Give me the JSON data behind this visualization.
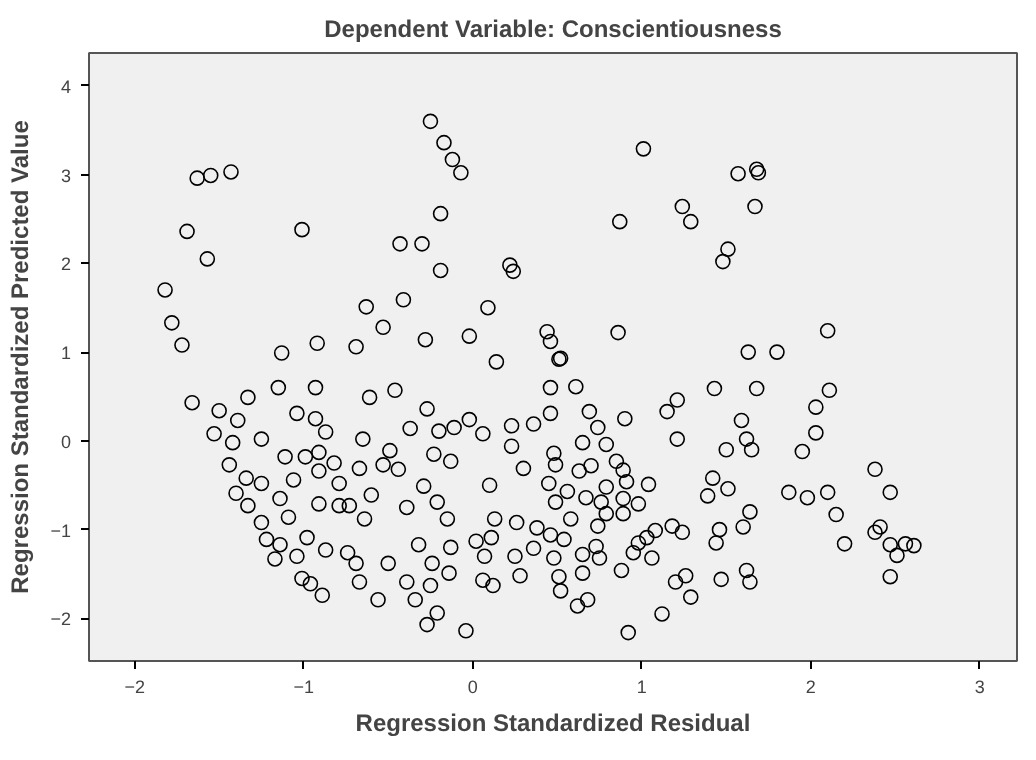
{
  "chart_data": {
    "type": "scatter",
    "title": "Dependent Variable: Conscientiousness",
    "xlabel": "Regression Standardized Residual",
    "ylabel": "Regression Standardized Predicted Value",
    "xlim": [
      -2.27,
      3.22
    ],
    "ylim": [
      -2.48,
      4.37
    ],
    "xticks": [
      -2,
      -1,
      0,
      1,
      2,
      3
    ],
    "yticks": [
      -2,
      -1,
      0,
      1,
      2,
      3,
      4
    ],
    "grid": false,
    "marker": "circle",
    "series": [
      {
        "color": "#000000",
        "x": [
          -0.25,
          -0.17,
          -0.12,
          -0.07,
          -0.19,
          -0.43,
          -0.3,
          -0.19,
          -1.01,
          -1.63,
          -1.55,
          -1.43,
          -1.69,
          -1.57,
          -1.82,
          -1.78,
          -1.72,
          -1.13,
          -0.92,
          -0.69,
          -0.63,
          -0.53,
          -0.41,
          -0.28,
          -0.02,
          0.09,
          0.14,
          0.22,
          0.24,
          0.44,
          0.46,
          0.51,
          1.01,
          1.57,
          1.68,
          1.69,
          0.87,
          1.24,
          1.29,
          1.67,
          1.51,
          1.48,
          0.86,
          1.63,
          1.8,
          2.1,
          0.52,
          -1.66,
          -1.5,
          -1.33,
          -1.15,
          -0.93,
          -0.46,
          -0.61,
          -0.27,
          -1.53,
          -1.39,
          -1.42,
          -1.25,
          -1.04,
          -0.93,
          -0.87,
          -0.65,
          -0.49,
          -0.37,
          -0.2,
          -0.11,
          -0.02,
          0.06,
          0.23,
          0.36,
          0.46,
          -1.44,
          -1.34,
          -1.4,
          -1.25,
          -1.11,
          -0.99,
          -0.91,
          -0.82,
          -0.91,
          -1.06,
          -0.79,
          -0.67,
          -0.53,
          -0.44,
          -0.23,
          -0.13,
          0.1,
          0.23,
          0.3,
          0.45,
          -1.33,
          -1.14,
          -1.25,
          -1.09,
          -0.91,
          -0.79,
          -0.6,
          -0.73,
          -0.64,
          -0.39,
          -0.29,
          -0.21,
          -0.15,
          0.02,
          0.13,
          0.26,
          0.38,
          -1.22,
          -1.14,
          -1.04,
          -0.98,
          -0.87,
          -0.74,
          -0.69,
          -0.5,
          -0.32,
          -0.24,
          -0.14,
          0.07,
          0.11,
          0.25,
          0.36,
          -1.17,
          -1.01,
          -0.89,
          -0.96,
          -0.67,
          -0.56,
          -0.39,
          -0.34,
          -0.25,
          -0.21,
          -0.27,
          -0.04,
          0.06,
          0.12,
          0.28,
          0.51,
          -0.13,
          0.61,
          0.46,
          0.69,
          0.9,
          0.74,
          0.79,
          0.65,
          0.48,
          0.49,
          0.63,
          0.7,
          0.85,
          0.89,
          0.91,
          1.04,
          0.56,
          0.67,
          0.79,
          0.76,
          0.89,
          0.98,
          0.49,
          0.58,
          0.79,
          0.89,
          0.74,
          0.46,
          0.54,
          0.73,
          0.65,
          0.48,
          0.75,
          0.98,
          1.03,
          1.08,
          0.95,
          1.06,
          1.18,
          1.24,
          0.65,
          0.88,
          0.52,
          0.68,
          0.62,
          1.12,
          0.92,
          1.2,
          1.26,
          1.29,
          1.47,
          1.62,
          1.64,
          1.44,
          1.46,
          1.6,
          1.64,
          1.39,
          1.42,
          1.51,
          1.21,
          1.15,
          1.21,
          1.43,
          1.68,
          1.59,
          1.62,
          1.65,
          1.5,
          2.11,
          2.03,
          2.03,
          1.95,
          1.87,
          1.98,
          2.1,
          2.15,
          2.2,
          2.38,
          2.47,
          2.38,
          2.41,
          2.47,
          2.51,
          2.56,
          2.61,
          2.47
        ],
        "values": [
          3.6,
          3.36,
          3.17,
          3.02,
          2.56,
          2.22,
          2.22,
          1.92,
          2.38,
          2.96,
          2.99,
          3.03,
          2.36,
          2.05,
          1.7,
          1.33,
          1.08,
          0.99,
          1.1,
          1.06,
          1.51,
          1.28,
          1.59,
          1.14,
          1.18,
          1.5,
          0.89,
          1.98,
          1.91,
          1.23,
          1.12,
          0.92,
          3.29,
          3.01,
          3.06,
          3.02,
          2.47,
          2.64,
          2.47,
          2.64,
          2.16,
          2.02,
          1.22,
          1.0,
          1.0,
          1.24,
          0.93,
          0.43,
          0.34,
          0.49,
          0.6,
          0.6,
          0.57,
          0.49,
          0.36,
          0.08,
          0.23,
          -0.02,
          0.02,
          0.31,
          0.25,
          0.1,
          0.02,
          -0.11,
          0.14,
          0.11,
          0.15,
          0.24,
          0.08,
          0.17,
          0.19,
          0.31,
          -0.27,
          -0.42,
          -0.59,
          -0.48,
          -0.18,
          -0.18,
          -0.13,
          -0.25,
          -0.34,
          -0.44,
          -0.48,
          -0.31,
          -0.27,
          -0.32,
          -0.15,
          -0.23,
          -0.5,
          -0.06,
          -0.31,
          -0.48,
          -0.73,
          -0.65,
          -0.92,
          -0.86,
          -0.71,
          -0.73,
          -0.61,
          -0.73,
          -0.88,
          -0.75,
          -0.51,
          -0.69,
          -0.88,
          -1.13,
          -0.88,
          -0.92,
          -0.98,
          -1.11,
          -1.17,
          -1.3,
          -1.09,
          -1.23,
          -1.26,
          -1.38,
          -1.38,
          -1.17,
          -1.38,
          -1.49,
          -1.3,
          -1.09,
          -1.3,
          -1.21,
          -1.33,
          -1.55,
          -1.74,
          -1.61,
          -1.59,
          -1.79,
          -1.59,
          -1.79,
          -1.63,
          -1.94,
          -2.07,
          -2.14,
          -1.57,
          -1.63,
          -1.52,
          -1.53,
          -1.2,
          0.61,
          0.6,
          0.33,
          0.25,
          0.15,
          -0.04,
          -0.02,
          -0.14,
          -0.27,
          -0.34,
          -0.28,
          -0.23,
          -0.33,
          -0.46,
          -0.49,
          -0.57,
          -0.64,
          -0.52,
          -0.69,
          -0.65,
          -0.71,
          -0.69,
          -0.88,
          -0.82,
          -0.82,
          -0.96,
          -1.06,
          -1.11,
          -1.19,
          -1.28,
          -1.32,
          -1.32,
          -1.15,
          -1.09,
          -1.01,
          -1.26,
          -1.32,
          -0.96,
          -1.03,
          -1.49,
          -1.46,
          -1.69,
          -1.79,
          -1.86,
          -1.95,
          -2.16,
          -1.59,
          -1.52,
          -1.76,
          -1.56,
          -1.46,
          -1.59,
          -1.15,
          -1.0,
          -0.97,
          -0.8,
          -0.62,
          -0.42,
          -0.54,
          0.02,
          0.33,
          0.46,
          0.59,
          0.59,
          0.23,
          0.02,
          -0.1,
          -0.1,
          0.57,
          0.38,
          0.09,
          -0.12,
          -0.58,
          -0.64,
          -0.58,
          -0.83,
          -1.16,
          -0.32,
          -0.58,
          -1.03,
          -0.97,
          -1.17,
          -1.29,
          -1.16,
          -1.18,
          -1.53
        ]
      }
    ]
  }
}
